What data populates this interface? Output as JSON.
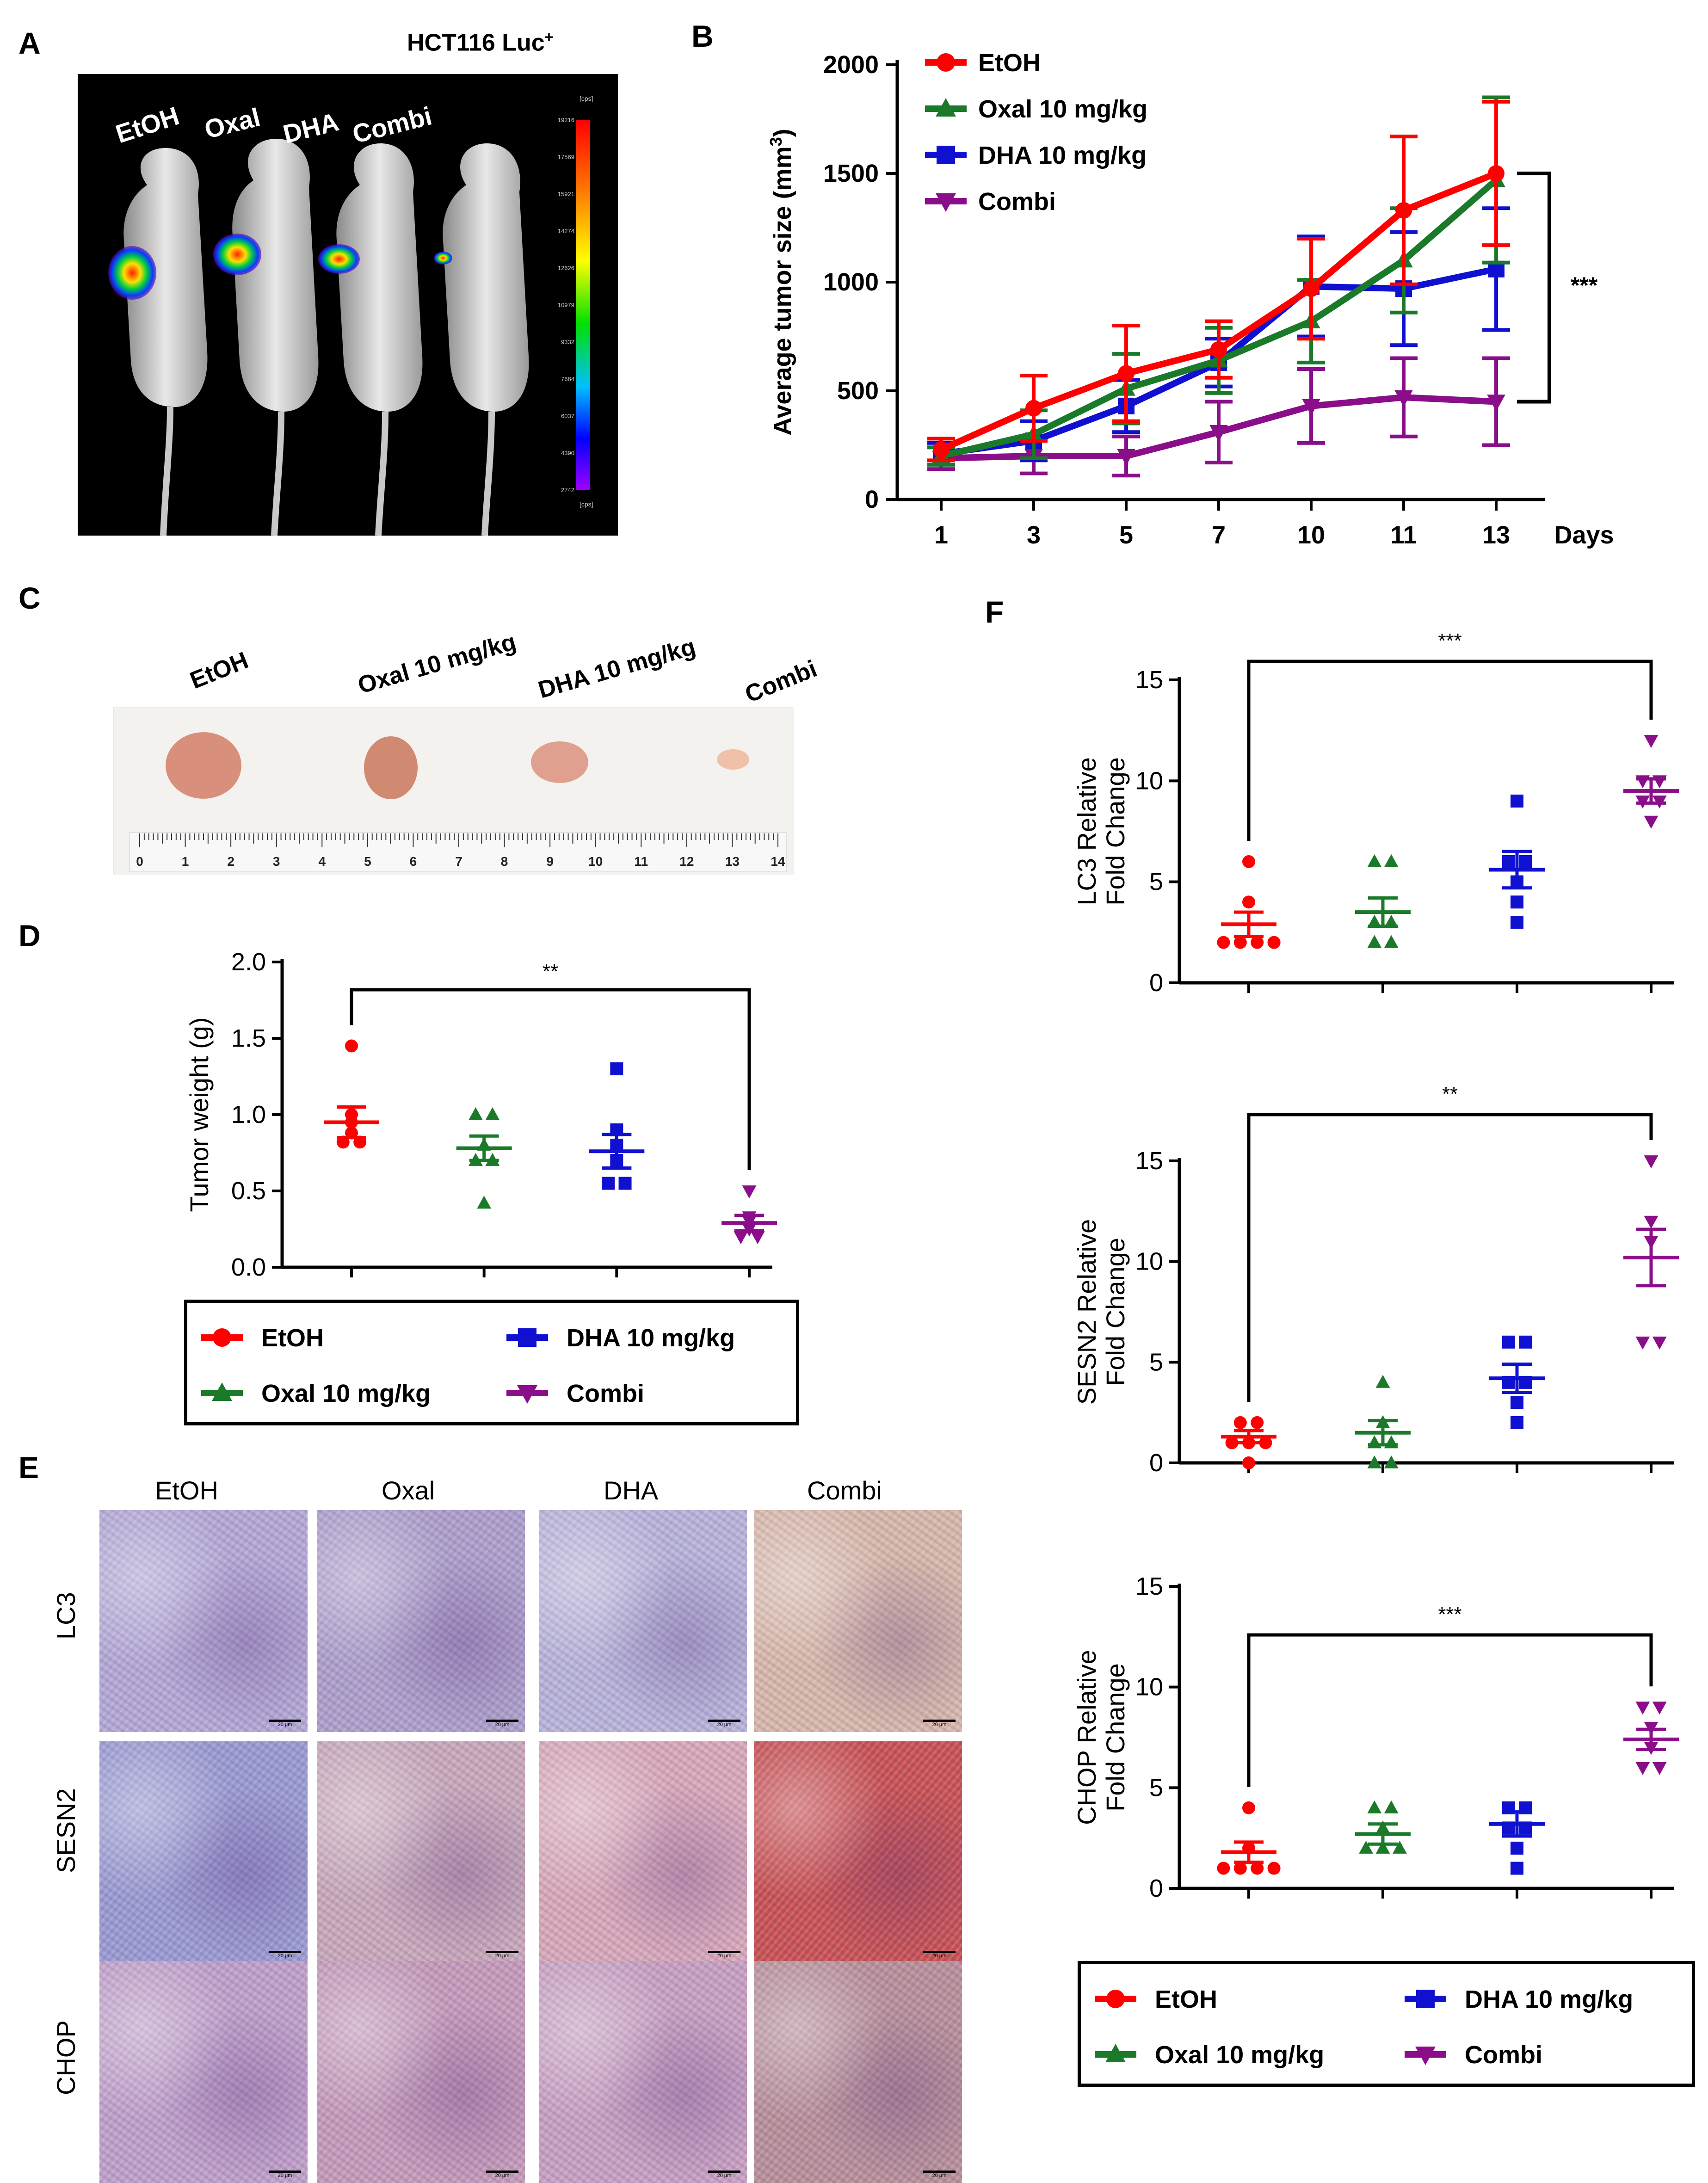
{
  "panels": {
    "A": {
      "letter": "A",
      "cell_line": "HCT116  Luc",
      "cell_line_sup": "+",
      "mouse_labels": [
        "EtOH",
        "Oxal",
        "DHA",
        "Combi"
      ],
      "scale_unit": "[cps]",
      "scale_ticks": [
        "19216",
        "17569",
        "15921",
        "14274",
        "12626",
        "10979",
        "9332",
        "7684",
        "6037",
        "4390",
        "2742"
      ]
    },
    "B": {
      "letter": "B"
    },
    "C": {
      "letter": "C",
      "labels": [
        "EtOH",
        "Oxal 10 mg/kg",
        "DHA  10 mg/kg",
        "Combi"
      ],
      "ruler_numbers": [
        "0",
        "1",
        "2",
        "3",
        "4",
        "5",
        "6",
        "7",
        "8",
        "9",
        "10",
        "11",
        "12",
        "13",
        "14"
      ]
    },
    "D": {
      "letter": "D"
    },
    "E": {
      "letter": "E",
      "columns": [
        "EtOH",
        "Oxal",
        "DHA",
        "Combi"
      ],
      "rows": [
        "LC3",
        "SESN2",
        "CHOP"
      ],
      "scale_bar": "20 μm"
    },
    "F": {
      "letter": "F"
    }
  },
  "legend": {
    "items": [
      {
        "label": "EtOH",
        "color": "#ff0000",
        "marker": "circle"
      },
      {
        "label": "Oxal 10 mg/kg",
        "color": "#1a7a2a",
        "marker": "triangle-up"
      },
      {
        "label": "DHA  10 mg/kg",
        "color": "#1010d0",
        "marker": "square"
      },
      {
        "label": "Combi",
        "color": "#8a0d8a",
        "marker": "triangle-down"
      }
    ]
  },
  "colors": {
    "etoh": "#ff0000",
    "oxal": "#1a7a2a",
    "dha": "#1010d0",
    "combi": "#8a0d8a"
  },
  "chart_data": [
    {
      "id": "B",
      "type": "line",
      "ylabel": "Average tumor size (mm3)",
      "x_unit": "Days",
      "categories": [
        "1",
        "3",
        "5",
        "7",
        "10",
        "11",
        "13"
      ],
      "ylim": [
        0,
        2000
      ],
      "yticks": [
        0,
        500,
        1000,
        1500,
        2000
      ],
      "legend_position": "top-left",
      "significance": "***",
      "series": [
        {
          "name": "EtOH",
          "values": [
            230,
            420,
            580,
            690,
            970,
            1330,
            1500
          ],
          "error": [
            50,
            150,
            220,
            130,
            230,
            340,
            330
          ]
        },
        {
          "name": "Oxal 10 mg/kg",
          "values": [
            200,
            300,
            510,
            640,
            820,
            1100,
            1470
          ],
          "error": [
            40,
            110,
            160,
            150,
            190,
            240,
            380
          ]
        },
        {
          "name": "DHA  10 mg/kg",
          "values": [
            210,
            270,
            430,
            630,
            980,
            970,
            1060
          ],
          "error": [
            50,
            90,
            120,
            110,
            230,
            260,
            280
          ]
        },
        {
          "name": "Combi",
          "values": [
            190,
            200,
            200,
            310,
            430,
            470,
            450
          ],
          "error": [
            50,
            80,
            90,
            140,
            170,
            180,
            200
          ]
        }
      ]
    },
    {
      "id": "D",
      "type": "scatter",
      "ylabel": "Tumor weight (g)",
      "ylim": [
        0,
        2.0
      ],
      "yticks": [
        "0.0",
        "0.5",
        "1.0",
        "1.5",
        "2.0"
      ],
      "significance": "**",
      "groups": [
        {
          "name": "EtOH",
          "mean": 0.95,
          "sem": 0.1,
          "points": [
            1.45,
            1.0,
            0.95,
            0.88,
            0.82,
            0.82
          ]
        },
        {
          "name": "Oxal 10 mg/kg",
          "mean": 0.78,
          "sem": 0.08,
          "points": [
            1.0,
            1.0,
            0.8,
            0.7,
            0.7,
            0.42
          ]
        },
        {
          "name": "DHA  10 mg/kg",
          "mean": 0.76,
          "sem": 0.11,
          "points": [
            1.3,
            0.9,
            0.8,
            0.7,
            0.55,
            0.55
          ]
        },
        {
          "name": "Combi",
          "mean": 0.29,
          "sem": 0.05,
          "points": [
            0.5,
            0.33,
            0.3,
            0.25,
            0.2,
            0.2
          ]
        }
      ]
    },
    {
      "id": "F1",
      "type": "scatter",
      "ylabel": [
        "LC3 Relative",
        "Fold Change"
      ],
      "ylim": [
        0,
        15
      ],
      "yticks": [
        "0",
        "5",
        "10",
        "15"
      ],
      "significance": "***",
      "groups": [
        {
          "name": "EtOH",
          "mean": 2.9,
          "sem": 0.6,
          "points": [
            6,
            4,
            2,
            2,
            2,
            2
          ]
        },
        {
          "name": "Oxal 10 mg/kg",
          "mean": 3.5,
          "sem": 0.7,
          "points": [
            6,
            6,
            3,
            3,
            2,
            2
          ]
        },
        {
          "name": "DHA  10 mg/kg",
          "mean": 5.6,
          "sem": 0.9,
          "points": [
            9,
            6,
            6,
            5,
            4,
            3
          ]
        },
        {
          "name": "Combi",
          "mean": 9.5,
          "sem": 0.6,
          "points": [
            12,
            10,
            10,
            9,
            9,
            8
          ]
        }
      ]
    },
    {
      "id": "F2",
      "type": "scatter",
      "ylabel": [
        "SESN2 Relative",
        "Fold Change"
      ],
      "ylim": [
        0,
        15
      ],
      "yticks": [
        "0",
        "5",
        "10",
        "15"
      ],
      "significance": "**",
      "groups": [
        {
          "name": "EtOH",
          "mean": 1.3,
          "sem": 0.3,
          "points": [
            2,
            2,
            1,
            1,
            1,
            0
          ]
        },
        {
          "name": "Oxal 10 mg/kg",
          "mean": 1.5,
          "sem": 0.6,
          "points": [
            4,
            2,
            1,
            1,
            0,
            0
          ]
        },
        {
          "name": "DHA  10 mg/kg",
          "mean": 4.2,
          "sem": 0.7,
          "points": [
            6,
            6,
            4,
            4,
            3,
            2
          ]
        },
        {
          "name": "Combi",
          "mean": 10.2,
          "sem": 1.4,
          "points": [
            15,
            12,
            11,
            6,
            6
          ]
        }
      ]
    },
    {
      "id": "F3",
      "type": "scatter",
      "ylabel": [
        "CHOP Relative",
        "Fold Change"
      ],
      "ylim": [
        0,
        15
      ],
      "yticks": [
        "0",
        "5",
        "10",
        "15"
      ],
      "significance": "***",
      "groups": [
        {
          "name": "EtOH",
          "mean": 1.8,
          "sem": 0.5,
          "points": [
            4,
            2,
            1,
            1,
            1,
            1
          ]
        },
        {
          "name": "Oxal 10 mg/kg",
          "mean": 2.7,
          "sem": 0.5,
          "points": [
            4,
            4,
            3,
            2,
            2,
            2
          ]
        },
        {
          "name": "DHA  10 mg/kg",
          "mean": 3.2,
          "sem": 0.6,
          "points": [
            4,
            4,
            3,
            3,
            2,
            1
          ]
        },
        {
          "name": "Combi",
          "mean": 7.4,
          "sem": 0.5,
          "points": [
            9,
            9,
            8,
            7,
            6,
            6
          ]
        }
      ]
    }
  ]
}
